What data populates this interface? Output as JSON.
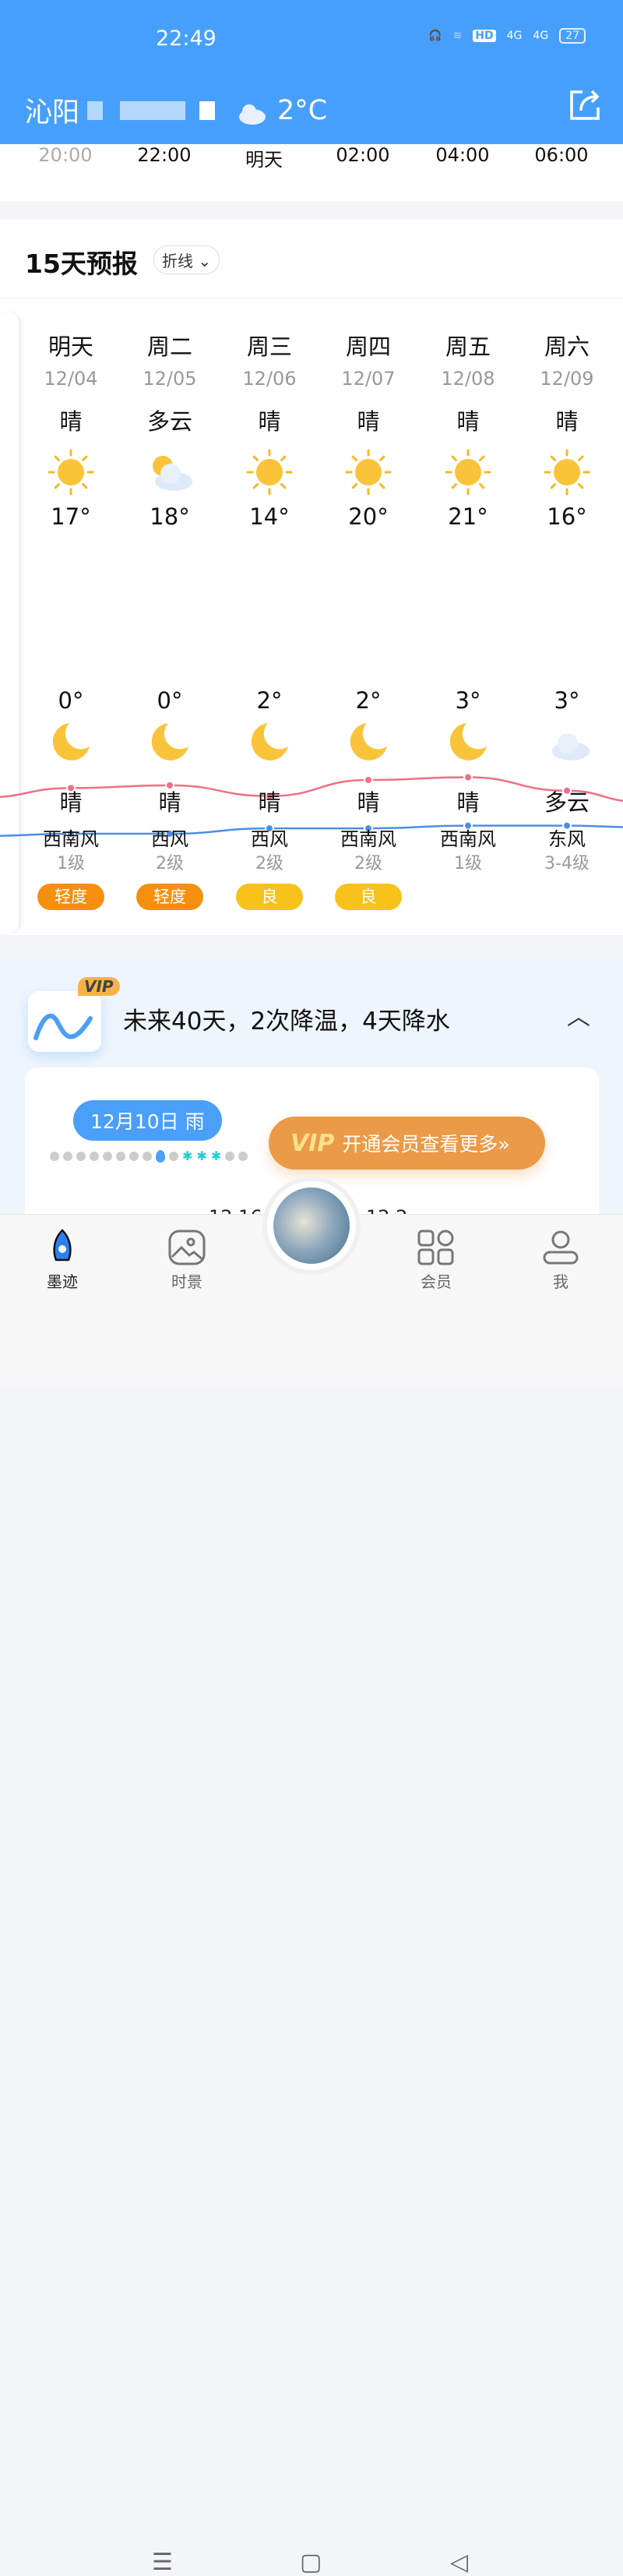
{
  "status": {
    "time": "22:49",
    "battery": "27",
    "hd": "HD",
    "net1": "4G",
    "net2": "4G"
  },
  "header": {
    "city": "沁阳",
    "temp": "2°C"
  },
  "hourly": [
    "20:00",
    "22:00",
    "明天",
    "02:00",
    "04:00",
    "06:00"
  ],
  "forecast": {
    "title": "15天预报",
    "mode": "折线",
    "days": [
      {
        "name": "明天",
        "date": "12/04",
        "day_wx": "晴",
        "day_icon": "sun",
        "high": "17°",
        "low": "0°",
        "night_icon": "moon",
        "night_wx": "晴",
        "wind": "西南风",
        "level": "1级",
        "aqi": "轻度",
        "aqi_color": "#f5900f"
      },
      {
        "name": "周二",
        "date": "12/05",
        "day_wx": "多云",
        "day_icon": "cloud-sun",
        "high": "18°",
        "low": "0°",
        "night_icon": "moon",
        "night_wx": "晴",
        "wind": "西风",
        "level": "2级",
        "aqi": "轻度",
        "aqi_color": "#f5900f"
      },
      {
        "name": "周三",
        "date": "12/06",
        "day_wx": "晴",
        "day_icon": "sun",
        "high": "14°",
        "low": "2°",
        "night_icon": "moon",
        "night_wx": "晴",
        "wind": "西风",
        "level": "2级",
        "aqi": "良",
        "aqi_color": "#f7c21a"
      },
      {
        "name": "周四",
        "date": "12/07",
        "day_wx": "晴",
        "day_icon": "sun",
        "high": "20°",
        "low": "2°",
        "night_icon": "moon",
        "night_wx": "晴",
        "wind": "西南风",
        "level": "2级",
        "aqi": "良",
        "aqi_color": "#f7c21a"
      },
      {
        "name": "周五",
        "date": "12/08",
        "day_wx": "晴",
        "day_icon": "sun",
        "high": "21°",
        "low": "3°",
        "night_icon": "moon",
        "night_wx": "晴",
        "wind": "西南风",
        "level": "1级",
        "aqi": "",
        "aqi_color": ""
      },
      {
        "name": "周六",
        "date": "12/09",
        "day_wx": "晴",
        "day_icon": "sun",
        "high": "16°",
        "low": "3°",
        "night_icon": "cloud-moon",
        "night_wx": "多云",
        "wind": "东风",
        "level": "3-4级",
        "aqi": "",
        "aqi_color": ""
      }
    ]
  },
  "chart_data": {
    "type": "line",
    "categories": [
      "12/04",
      "12/05",
      "12/06",
      "12/07",
      "12/08",
      "12/09"
    ],
    "series": [
      {
        "values": [
          17,
          18,
          14,
          20,
          21,
          16
        ],
        "color": "#ef6f86"
      },
      {
        "values": [
          0,
          0,
          2,
          2,
          3,
          3
        ],
        "color": "#4a90e2"
      }
    ]
  },
  "vip": {
    "badge": "VIP",
    "summary": "未来40天，2次降温，4天降水",
    "date_pill": "12月10日 雨",
    "button_vip": "VIP",
    "button": "开通会员查看更多»",
    "axis": [
      "12.16",
      "12.2"
    ]
  },
  "nav": {
    "items": [
      "墨迹",
      "时景",
      "会员",
      "我"
    ]
  }
}
